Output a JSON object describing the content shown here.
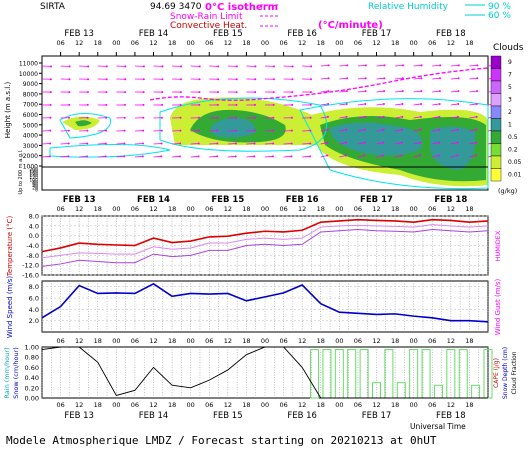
{
  "header": {
    "station": "SIRTA",
    "coords": "94.69 3470",
    "isotherm_label": "0°C isotherm",
    "snow_rain_label": "Snow-Rain Limit",
    "convective_label": "Convective Heat.",
    "convective_unit": "(°C/minute)",
    "rh_label": "Relative Humidity",
    "rh_90": "90 %",
    "rh_60": "60 %",
    "clouds_label": "Clouds",
    "clouds_unit": "(g/kg)"
  },
  "footer": {
    "title": "Modele Atmospherique LMDZ / Forecast starting on 20210213 at 0hUT",
    "xaxis": "Universal Time"
  },
  "colors": {
    "magenta": "#ff00ff",
    "cyan": "#00e5ee",
    "red": "#dd0000",
    "blue": "#0000cc",
    "rain_green": "#66dd66"
  },
  "chart_data": [
    {
      "id": "cloud-section",
      "type": "heatmap",
      "ylabel": "Height (m a.s.l.)",
      "ylabel_low": "Up to 200 m a.g.l.",
      "yticks_upper": [
        11000,
        10000,
        9000,
        8000,
        7000,
        6000,
        5000,
        4000,
        3000,
        2000,
        1000
      ],
      "yticks_lower": [
        200,
        180,
        160,
        140,
        120,
        100,
        80,
        60,
        40,
        20,
        0
      ],
      "hours_ticks": [
        "06",
        "12",
        "18",
        "00",
        "06",
        "12",
        "18",
        "00",
        "06",
        "12",
        "18",
        "00",
        "06",
        "12",
        "18",
        "00",
        "06",
        "12",
        "18",
        "00",
        "06",
        "12",
        "18"
      ],
      "days": [
        "FEB 13",
        "FEB 14",
        "FEB 15",
        "FEB 16",
        "FEB 17",
        "FEB 18"
      ],
      "colorbar": {
        "levels": [
          "9",
          "7",
          "5",
          "3",
          "2",
          "1",
          "0.5",
          "0.2",
          "0.05",
          "0.01"
        ],
        "colors": [
          "#9900cc",
          "#cc33ff",
          "#cc66ff",
          "#e0a0ff",
          "#8888ff",
          "#339999",
          "#33aa33",
          "#77dd33",
          "#ccee33",
          "#ffff33"
        ]
      }
    },
    {
      "id": "temperature",
      "type": "line",
      "ylabel": "Temperature (°C)",
      "ylabel_right": "HUMIDEX",
      "yticks": [
        "8.0",
        "4.0",
        "0.0",
        "-4.0",
        "-8.0",
        "-12.0",
        "-16.0"
      ],
      "ylim": [
        -16,
        8
      ],
      "x_hours": [
        0,
        6,
        12,
        18,
        24,
        30,
        36,
        42,
        48,
        54,
        60,
        66,
        72,
        78,
        84,
        90,
        96,
        102,
        108,
        114,
        120,
        126,
        132,
        138,
        144
      ],
      "series": [
        {
          "values": [
            -6.5,
            -5.0,
            -3.0,
            -3.5,
            -3.8,
            -4.0,
            -1.0,
            -2.8,
            -2.2,
            -0.5,
            -0.2,
            1.0,
            1.8,
            1.5,
            2.2,
            5.5,
            6.0,
            6.5,
            6.2,
            6.0,
            5.5,
            6.5,
            6.2,
            5.5,
            6.0
          ]
        },
        {
          "values": [
            -9.0,
            -8.0,
            -7.0,
            -7.2,
            -7.5,
            -7.5,
            -4.5,
            -5.5,
            -5.0,
            -3.0,
            -3.0,
            -1.5,
            -1.0,
            -1.5,
            -1.0,
            3.5,
            4.0,
            4.2,
            4.0,
            3.8,
            3.5,
            4.5,
            4.0,
            3.5,
            4.0
          ]
        },
        {
          "values": [
            -12.5,
            -11.5,
            -10.0,
            -10.5,
            -11.0,
            -11.0,
            -7.5,
            -8.5,
            -8.0,
            -6.0,
            -6.0,
            -4.0,
            -3.5,
            -4.0,
            -3.5,
            1.5,
            2.0,
            2.5,
            2.0,
            1.8,
            1.5,
            2.5,
            2.0,
            1.5,
            2.0
          ]
        }
      ]
    },
    {
      "id": "wind",
      "type": "line",
      "ylabel": "Wind Speed (m/s)",
      "ylabel_right": "Wind Gust (m/s)",
      "yticks": [
        "8.0",
        "6.0",
        "4.0",
        "2.0"
      ],
      "ylim": [
        0,
        9
      ],
      "x_hours": [
        0,
        6,
        12,
        18,
        24,
        30,
        36,
        42,
        48,
        54,
        60,
        66,
        72,
        78,
        84,
        90,
        96,
        102,
        108,
        114,
        120,
        126,
        132,
        138,
        144
      ],
      "series": [
        {
          "values": [
            2.5,
            4.5,
            8.2,
            6.8,
            6.9,
            6.8,
            8.5,
            6.3,
            6.8,
            6.7,
            6.8,
            5.5,
            6.2,
            6.9,
            8.3,
            5.0,
            3.5,
            3.3,
            3.1,
            3.2,
            2.8,
            2.5,
            2.0,
            2.0,
            1.8
          ]
        }
      ]
    },
    {
      "id": "precip",
      "type": "bar",
      "ylabel": "Rain (mm/hour)",
      "ylabel2": "Snow (cm/hour)",
      "ylabel_right": "CAPE (J/g)",
      "ylabel_right2": "Snow Depth (cm)",
      "ylabel_right3": "Cloud Fraction",
      "yticks": [
        "1.00",
        "0.80",
        "0.60",
        "0.40",
        "0.20",
        "0.00"
      ],
      "ylim": [
        0,
        1
      ],
      "cloud_fraction_hours": [
        0,
        6,
        12,
        18,
        24,
        30,
        36,
        42,
        48,
        54,
        60,
        66,
        72,
        78,
        84,
        90,
        96,
        102,
        108,
        114,
        120,
        126,
        132,
        138,
        144
      ],
      "cloud_fraction_values": [
        0.95,
        1.0,
        1.0,
        0.7,
        0.05,
        0.15,
        0.6,
        0.25,
        0.2,
        0.35,
        0.55,
        0.85,
        1.0,
        1.0,
        0.6,
        0.0,
        0,
        0,
        0,
        0,
        0,
        0,
        0,
        0,
        0
      ],
      "rain_bars_hours": [
        88,
        92,
        96,
        100,
        104,
        108,
        112,
        116,
        120,
        124,
        128,
        132,
        136,
        140,
        144
      ],
      "rain_bars_values": [
        0.95,
        0.95,
        0.95,
        0.95,
        0.95,
        0.3,
        0.95,
        0.3,
        0.95,
        0.95,
        0.25,
        0.95,
        0.95,
        0.25,
        0.95
      ]
    }
  ]
}
